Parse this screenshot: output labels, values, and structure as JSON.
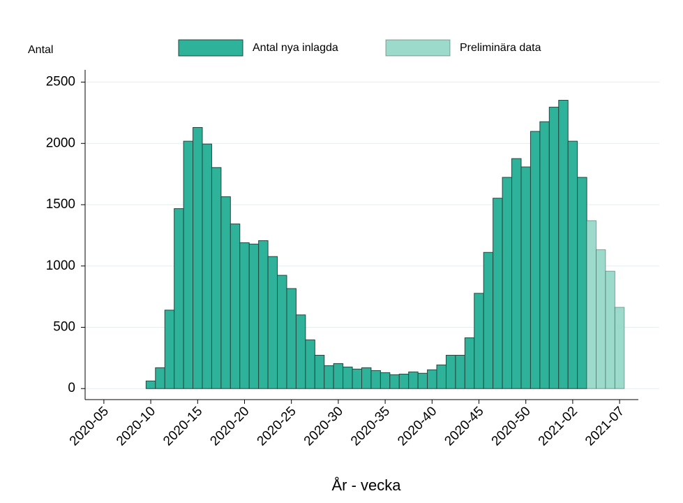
{
  "chart_data": {
    "type": "bar",
    "y_axis_label": "Antal",
    "x_axis_label": "År - vecka",
    "x": [
      "2020-10",
      "2020-11",
      "2020-12",
      "2020-13",
      "2020-14",
      "2020-15",
      "2020-16",
      "2020-17",
      "2020-18",
      "2020-19",
      "2020-20",
      "2020-21",
      "2020-22",
      "2020-23",
      "2020-24",
      "2020-25",
      "2020-26",
      "2020-27",
      "2020-28",
      "2020-29",
      "2020-30",
      "2020-31",
      "2020-32",
      "2020-33",
      "2020-34",
      "2020-35",
      "2020-36",
      "2020-37",
      "2020-38",
      "2020-39",
      "2020-40",
      "2020-41",
      "2020-42",
      "2020-43",
      "2020-44",
      "2020-45",
      "2020-46",
      "2020-47",
      "2020-48",
      "2020-49",
      "2020-50",
      "2020-51",
      "2020-52",
      "2020-53",
      "2021-01",
      "2021-02",
      "2021-03",
      "2021-04",
      "2021-05",
      "2021-06",
      "2021-07"
    ],
    "series": [
      {
        "name": "Antal nya inlagda",
        "color": "#2eb39a",
        "values": [
          62,
          170,
          640,
          1468,
          2018,
          2130,
          1995,
          1803,
          1565,
          1343,
          1190,
          1179,
          1207,
          1077,
          924,
          816,
          601,
          397,
          272,
          187,
          204,
          176,
          159,
          170,
          147,
          130,
          113,
          118,
          136,
          125,
          153,
          193,
          272,
          272,
          414,
          777,
          1111,
          1553,
          1723,
          1876,
          1808,
          2098,
          2177,
          2296,
          2352,
          2018,
          1723,
          null,
          null,
          null,
          null
        ]
      },
      {
        "name": "Preliminära data",
        "color": "#9cdacb",
        "values": [
          null,
          null,
          null,
          null,
          null,
          null,
          null,
          null,
          null,
          null,
          null,
          null,
          null,
          null,
          null,
          null,
          null,
          null,
          null,
          null,
          null,
          null,
          null,
          null,
          null,
          null,
          null,
          null,
          null,
          null,
          null,
          null,
          null,
          null,
          null,
          null,
          null,
          null,
          null,
          null,
          null,
          null,
          null,
          null,
          null,
          null,
          null,
          1370,
          1133,
          958,
          663
        ]
      }
    ],
    "xlim": [
      "2020-03",
      "2021-09"
    ],
    "xticks": [
      "2020-05",
      "2020-10",
      "2020-15",
      "2020-20",
      "2020-25",
      "2020-30",
      "2020-35",
      "2020-40",
      "2020-45",
      "2020-50",
      "2021-02",
      "2021-07"
    ],
    "ylim": [
      -90,
      2600
    ],
    "yticks": [
      0,
      500,
      1000,
      1500,
      2000,
      2500
    ],
    "grid": true
  }
}
